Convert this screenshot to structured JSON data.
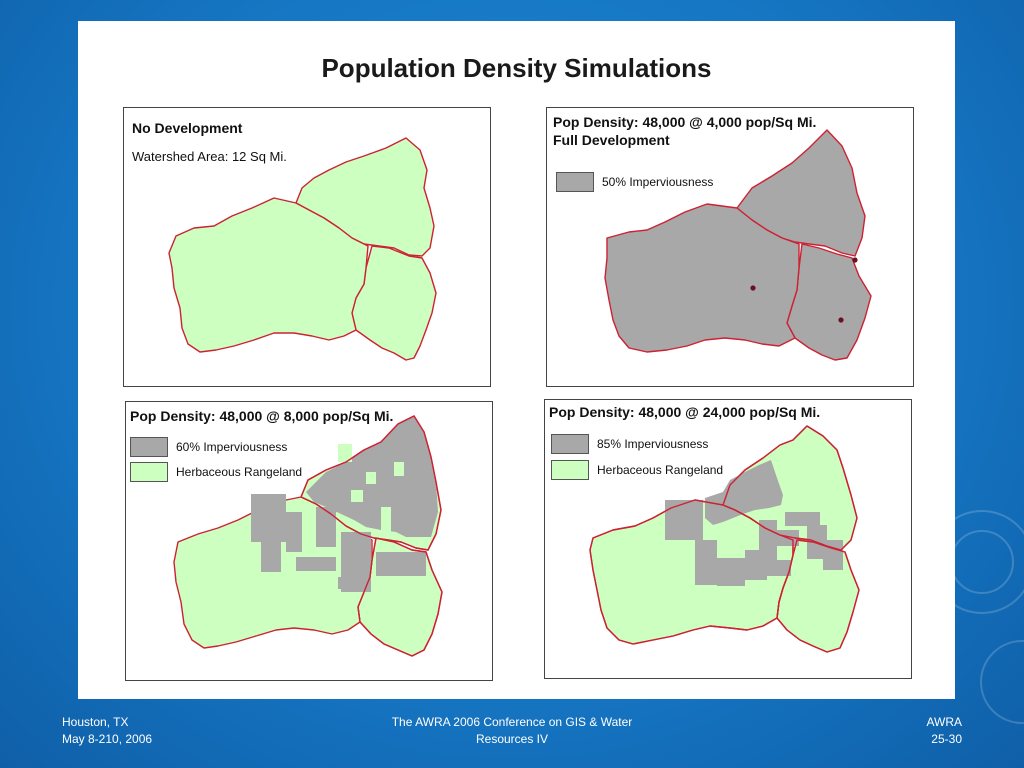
{
  "slide": {
    "title": "Population Density Simulations"
  },
  "colors": {
    "rangeland": "#ccffc0",
    "impervious": "#a8a8a8",
    "boundary": "#cc2233",
    "background": "#1677c4"
  },
  "panels": {
    "no_development": {
      "title": "No Development",
      "subtitle": "Watershed Area: 12 Sq Mi."
    },
    "full_development": {
      "title": "Pop Density: 48,000 @ 4,000 pop/Sq Mi.",
      "subtitle": "Full Development",
      "legend": [
        {
          "label": "50% Imperviousness",
          "color": "#a8a8a8"
        }
      ]
    },
    "density_8000": {
      "title": "Pop Density: 48,000 @ 8,000 pop/Sq Mi.",
      "legend": [
        {
          "label": "60% Imperviousness",
          "color": "#a8a8a8"
        },
        {
          "label": "Herbaceous Rangeland",
          "color": "#ccffc0"
        }
      ]
    },
    "density_24000": {
      "title": "Pop Density: 48,000 @ 24,000 pop/Sq Mi.",
      "legend": [
        {
          "label": "85% Imperviousness",
          "color": "#a8a8a8"
        },
        {
          "label": "Herbaceous Rangeland",
          "color": "#ccffc0"
        }
      ]
    }
  },
  "footer": {
    "location": "Houston, TX",
    "dates": "May 8-210, 2006",
    "conference_line1": "The AWRA 2006 Conference on GIS & Water",
    "conference_line2": "Resources IV",
    "org": "AWRA",
    "page": "25-30"
  }
}
